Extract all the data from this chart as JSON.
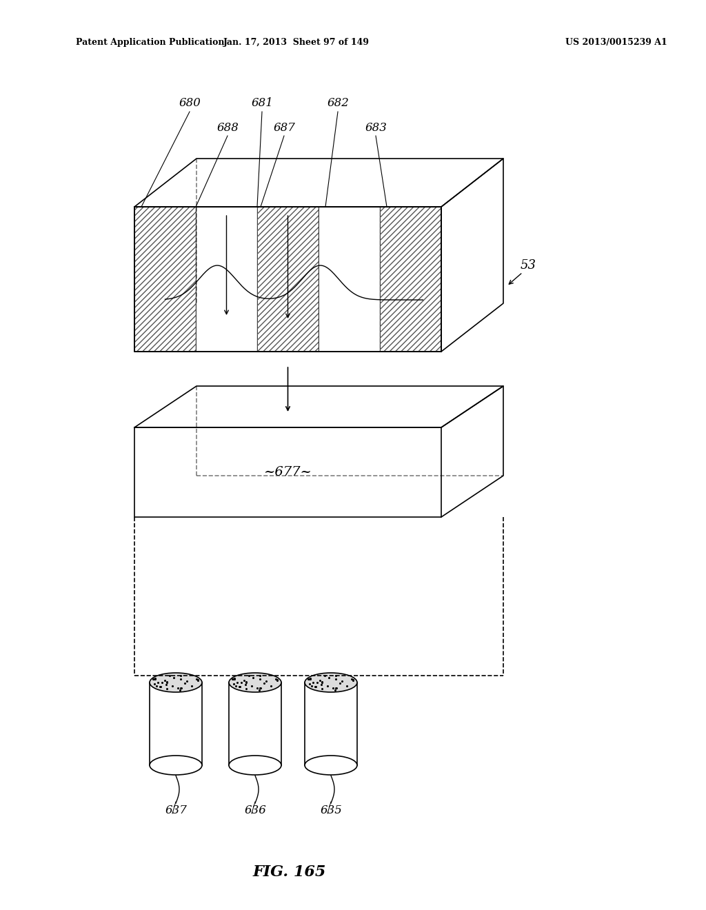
{
  "title": "FIG. 165",
  "header_left": "Patent Application Publication",
  "header_mid": "Jan. 17, 2013  Sheet 97 of 149",
  "header_right": "US 2013/0015239 A1",
  "bg_color": "#ffffff",
  "box1_label": "53",
  "box2_label": "~677~",
  "labels_top": [
    "680",
    "681",
    "682",
    "688",
    "687",
    "683"
  ],
  "labels_bottom": [
    "637",
    "636",
    "635"
  ]
}
